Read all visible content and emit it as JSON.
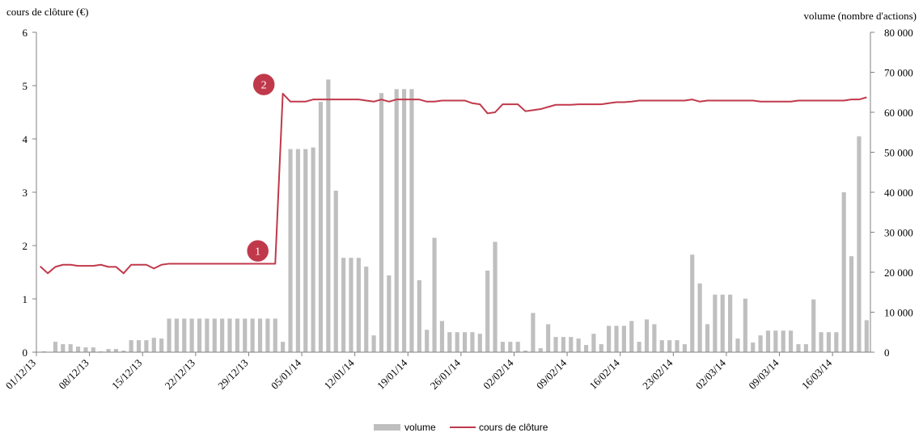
{
  "chart_data": {
    "type": "bar+line",
    "left_axis_title": "cours de clôture (€)",
    "right_axis_title": "volume (nombre d'actions)",
    "left_ylim": [
      0,
      6
    ],
    "left_ticks": [
      "0",
      "1",
      "2",
      "3",
      "4",
      "5",
      "6"
    ],
    "right_ylim": [
      0,
      80000
    ],
    "right_ticks": [
      "0",
      "10 000",
      "20 000",
      "30 000",
      "40 000",
      "50 000",
      "60 000",
      "70 000",
      "80 000"
    ],
    "x_tick_labels": [
      "01/12/13",
      "08/12/13",
      "15/12/13",
      "22/12/13",
      "29/12/13",
      "05/01/14",
      "12/01/14",
      "19/01/14",
      "26/01/14",
      "02/02/14",
      "09/02/14",
      "16/02/14",
      "23/02/14",
      "02/03/14",
      "09/03/14",
      "16/03/14"
    ],
    "x_tick_days": [
      0,
      7,
      14,
      21,
      28,
      35,
      42,
      49,
      56,
      63,
      70,
      77,
      84,
      91,
      98,
      105
    ],
    "days_span": 110,
    "legend": {
      "position": "bottom",
      "volume_label": "volume",
      "price_label": "cours de clôture"
    },
    "markers": [
      {
        "label": "1",
        "day": 28.7,
        "price": 1.9
      },
      {
        "label": "2",
        "day": 29.5,
        "price": 5.02
      }
    ],
    "colors": {
      "volume": "#bfbfbf",
      "price": "#c0394b",
      "marker": "#c0394b",
      "axis": "#808080"
    },
    "volume": [
      {
        "day": 0.5,
        "value": 200
      },
      {
        "day": 2,
        "value": 2600
      },
      {
        "day": 3,
        "value": 2000
      },
      {
        "day": 4,
        "value": 2000
      },
      {
        "day": 5,
        "value": 1400
      },
      {
        "day": 6,
        "value": 1200
      },
      {
        "day": 7,
        "value": 1200
      },
      {
        "day": 8,
        "value": 200
      },
      {
        "day": 9,
        "value": 800
      },
      {
        "day": 10,
        "value": 800
      },
      {
        "day": 11,
        "value": 400
      },
      {
        "day": 12,
        "value": 3000
      },
      {
        "day": 13,
        "value": 3000
      },
      {
        "day": 14,
        "value": 3000
      },
      {
        "day": 15,
        "value": 3600
      },
      {
        "day": 16,
        "value": 3400
      },
      {
        "day": 17,
        "value": 8400
      },
      {
        "day": 18,
        "value": 8400
      },
      {
        "day": 19,
        "value": 8400
      },
      {
        "day": 20,
        "value": 8400
      },
      {
        "day": 21,
        "value": 8400
      },
      {
        "day": 22,
        "value": 8400
      },
      {
        "day": 23,
        "value": 8400
      },
      {
        "day": 24,
        "value": 8400
      },
      {
        "day": 25,
        "value": 8400
      },
      {
        "day": 26,
        "value": 8400
      },
      {
        "day": 27,
        "value": 8400
      },
      {
        "day": 28,
        "value": 8400
      },
      {
        "day": 29,
        "value": 8400
      },
      {
        "day": 30,
        "value": 8400
      },
      {
        "day": 31,
        "value": 8400
      },
      {
        "day": 32,
        "value": 2600
      },
      {
        "day": 33,
        "value": 50800
      },
      {
        "day": 34,
        "value": 50800
      },
      {
        "day": 35,
        "value": 50800
      },
      {
        "day": 36,
        "value": 51200
      },
      {
        "day": 37,
        "value": 62600
      },
      {
        "day": 38,
        "value": 68200
      },
      {
        "day": 39,
        "value": 40400
      },
      {
        "day": 40,
        "value": 23600
      },
      {
        "day": 41,
        "value": 23600
      },
      {
        "day": 42,
        "value": 23600
      },
      {
        "day": 43,
        "value": 21400
      },
      {
        "day": 44,
        "value": 4200
      },
      {
        "day": 45,
        "value": 64800
      },
      {
        "day": 46,
        "value": 19200
      },
      {
        "day": 47,
        "value": 65800
      },
      {
        "day": 48,
        "value": 65800
      },
      {
        "day": 49,
        "value": 65800
      },
      {
        "day": 50,
        "value": 18000
      },
      {
        "day": 51,
        "value": 5600
      },
      {
        "day": 52,
        "value": 28600
      },
      {
        "day": 53,
        "value": 7800
      },
      {
        "day": 54,
        "value": 5000
      },
      {
        "day": 55,
        "value": 5000
      },
      {
        "day": 56,
        "value": 5000
      },
      {
        "day": 57,
        "value": 5000
      },
      {
        "day": 58,
        "value": 4600
      },
      {
        "day": 59,
        "value": 20400
      },
      {
        "day": 60,
        "value": 27600
      },
      {
        "day": 61,
        "value": 2600
      },
      {
        "day": 62,
        "value": 2600
      },
      {
        "day": 63,
        "value": 2600
      },
      {
        "day": 64,
        "value": 400
      },
      {
        "day": 65,
        "value": 9800
      },
      {
        "day": 66,
        "value": 1000
      },
      {
        "day": 67,
        "value": 7000
      },
      {
        "day": 68,
        "value": 3800
      },
      {
        "day": 69,
        "value": 3800
      },
      {
        "day": 70,
        "value": 3800
      },
      {
        "day": 71,
        "value": 3400
      },
      {
        "day": 72,
        "value": 1800
      },
      {
        "day": 73,
        "value": 4600
      },
      {
        "day": 74,
        "value": 2000
      },
      {
        "day": 75,
        "value": 6600
      },
      {
        "day": 76,
        "value": 6600
      },
      {
        "day": 77,
        "value": 6600
      },
      {
        "day": 78,
        "value": 7800
      },
      {
        "day": 79,
        "value": 2600
      },
      {
        "day": 80,
        "value": 8200
      },
      {
        "day": 81,
        "value": 7000
      },
      {
        "day": 82,
        "value": 3000
      },
      {
        "day": 83,
        "value": 3000
      },
      {
        "day": 84,
        "value": 3000
      },
      {
        "day": 85,
        "value": 2000
      },
      {
        "day": 86,
        "value": 24400
      },
      {
        "day": 87,
        "value": 17200
      },
      {
        "day": 88,
        "value": 7000
      },
      {
        "day": 89,
        "value": 14400
      },
      {
        "day": 90,
        "value": 14400
      },
      {
        "day": 91,
        "value": 14400
      },
      {
        "day": 92,
        "value": 3400
      },
      {
        "day": 93,
        "value": 13400
      },
      {
        "day": 94,
        "value": 2400
      },
      {
        "day": 95,
        "value": 4200
      },
      {
        "day": 96,
        "value": 5400
      },
      {
        "day": 97,
        "value": 5400
      },
      {
        "day": 98,
        "value": 5400
      },
      {
        "day": 99,
        "value": 5400
      },
      {
        "day": 100,
        "value": 2000
      },
      {
        "day": 101,
        "value": 2000
      },
      {
        "day": 102,
        "value": 13200
      },
      {
        "day": 103,
        "value": 5000
      },
      {
        "day": 104,
        "value": 5000
      },
      {
        "day": 105,
        "value": 5000
      },
      {
        "day": 106,
        "value": 40000
      },
      {
        "day": 107,
        "value": 24000
      },
      {
        "day": 108,
        "value": 54000
      },
      {
        "day": 109,
        "value": 8000
      }
    ],
    "price": [
      {
        "day": 0,
        "value": 1.61
      },
      {
        "day": 1,
        "value": 1.48
      },
      {
        "day": 2,
        "value": 1.6
      },
      {
        "day": 3,
        "value": 1.64
      },
      {
        "day": 4,
        "value": 1.64
      },
      {
        "day": 5,
        "value": 1.62
      },
      {
        "day": 6,
        "value": 1.62
      },
      {
        "day": 7,
        "value": 1.62
      },
      {
        "day": 8,
        "value": 1.64
      },
      {
        "day": 9,
        "value": 1.6
      },
      {
        "day": 10,
        "value": 1.6
      },
      {
        "day": 11,
        "value": 1.48
      },
      {
        "day": 12,
        "value": 1.64
      },
      {
        "day": 13,
        "value": 1.64
      },
      {
        "day": 14,
        "value": 1.64
      },
      {
        "day": 15,
        "value": 1.57
      },
      {
        "day": 16,
        "value": 1.64
      },
      {
        "day": 17,
        "value": 1.66
      },
      {
        "day": 18,
        "value": 1.66
      },
      {
        "day": 19,
        "value": 1.66
      },
      {
        "day": 20,
        "value": 1.66
      },
      {
        "day": 21,
        "value": 1.66
      },
      {
        "day": 22,
        "value": 1.66
      },
      {
        "day": 23,
        "value": 1.66
      },
      {
        "day": 24,
        "value": 1.66
      },
      {
        "day": 25,
        "value": 1.66
      },
      {
        "day": 26,
        "value": 1.66
      },
      {
        "day": 27,
        "value": 1.66
      },
      {
        "day": 28,
        "value": 1.66
      },
      {
        "day": 29,
        "value": 1.66
      },
      {
        "day": 30,
        "value": 1.66
      },
      {
        "day": 31,
        "value": 1.66
      },
      {
        "day": 32,
        "value": 4.85
      },
      {
        "day": 33,
        "value": 4.7
      },
      {
        "day": 34,
        "value": 4.7
      },
      {
        "day": 35,
        "value": 4.7
      },
      {
        "day": 36,
        "value": 4.74
      },
      {
        "day": 37,
        "value": 4.74
      },
      {
        "day": 38,
        "value": 4.74
      },
      {
        "day": 39,
        "value": 4.74
      },
      {
        "day": 40,
        "value": 4.74
      },
      {
        "day": 41,
        "value": 4.74
      },
      {
        "day": 42,
        "value": 4.74
      },
      {
        "day": 43,
        "value": 4.72
      },
      {
        "day": 44,
        "value": 4.7
      },
      {
        "day": 45,
        "value": 4.74
      },
      {
        "day": 46,
        "value": 4.7
      },
      {
        "day": 47,
        "value": 4.74
      },
      {
        "day": 48,
        "value": 4.74
      },
      {
        "day": 49,
        "value": 4.74
      },
      {
        "day": 50,
        "value": 4.74
      },
      {
        "day": 51,
        "value": 4.7
      },
      {
        "day": 52,
        "value": 4.7
      },
      {
        "day": 53,
        "value": 4.72
      },
      {
        "day": 54,
        "value": 4.72
      },
      {
        "day": 55,
        "value": 4.72
      },
      {
        "day": 56,
        "value": 4.72
      },
      {
        "day": 57,
        "value": 4.67
      },
      {
        "day": 58,
        "value": 4.65
      },
      {
        "day": 59,
        "value": 4.48
      },
      {
        "day": 60,
        "value": 4.5
      },
      {
        "day": 61,
        "value": 4.65
      },
      {
        "day": 62,
        "value": 4.65
      },
      {
        "day": 63,
        "value": 4.65
      },
      {
        "day": 64,
        "value": 4.52
      },
      {
        "day": 65,
        "value": 4.54
      },
      {
        "day": 66,
        "value": 4.56
      },
      {
        "day": 67,
        "value": 4.6
      },
      {
        "day": 68,
        "value": 4.64
      },
      {
        "day": 69,
        "value": 4.64
      },
      {
        "day": 70,
        "value": 4.64
      },
      {
        "day": 71,
        "value": 4.65
      },
      {
        "day": 72,
        "value": 4.65
      },
      {
        "day": 73,
        "value": 4.65
      },
      {
        "day": 74,
        "value": 4.65
      },
      {
        "day": 75,
        "value": 4.67
      },
      {
        "day": 76,
        "value": 4.69
      },
      {
        "day": 77,
        "value": 4.69
      },
      {
        "day": 78,
        "value": 4.7
      },
      {
        "day": 79,
        "value": 4.72
      },
      {
        "day": 80,
        "value": 4.72
      },
      {
        "day": 81,
        "value": 4.72
      },
      {
        "day": 82,
        "value": 4.72
      },
      {
        "day": 83,
        "value": 4.72
      },
      {
        "day": 84,
        "value": 4.72
      },
      {
        "day": 85,
        "value": 4.72
      },
      {
        "day": 86,
        "value": 4.74
      },
      {
        "day": 87,
        "value": 4.7
      },
      {
        "day": 88,
        "value": 4.72
      },
      {
        "day": 89,
        "value": 4.72
      },
      {
        "day": 90,
        "value": 4.72
      },
      {
        "day": 91,
        "value": 4.72
      },
      {
        "day": 92,
        "value": 4.72
      },
      {
        "day": 93,
        "value": 4.72
      },
      {
        "day": 94,
        "value": 4.72
      },
      {
        "day": 95,
        "value": 4.7
      },
      {
        "day": 96,
        "value": 4.7
      },
      {
        "day": 97,
        "value": 4.7
      },
      {
        "day": 98,
        "value": 4.7
      },
      {
        "day": 99,
        "value": 4.7
      },
      {
        "day": 100,
        "value": 4.72
      },
      {
        "day": 101,
        "value": 4.72
      },
      {
        "day": 102,
        "value": 4.72
      },
      {
        "day": 103,
        "value": 4.72
      },
      {
        "day": 104,
        "value": 4.72
      },
      {
        "day": 105,
        "value": 4.72
      },
      {
        "day": 106,
        "value": 4.72
      },
      {
        "day": 107,
        "value": 4.74
      },
      {
        "day": 108,
        "value": 4.74
      },
      {
        "day": 109,
        "value": 4.78
      }
    ]
  }
}
